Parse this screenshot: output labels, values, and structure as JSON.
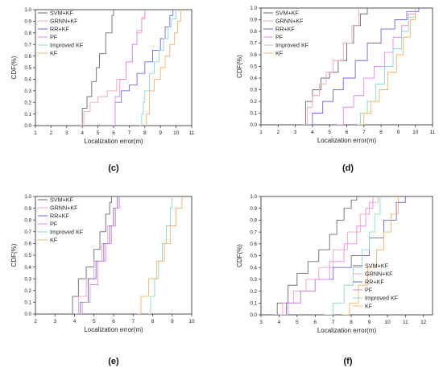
{
  "figure": {
    "series_colors": {
      "SVM+KF": "#6b6b6b",
      "GRNN+KF": "#f2a3b8",
      "RR+KF": "#6a6ad8",
      "PF": "#e38be8",
      "Improved KF": "#8fd3cf",
      "KF": "#f5b06a"
    }
  },
  "chart_data": [
    {
      "panel": "(c)",
      "type": "line",
      "xlabel": "Localization error(m)",
      "ylabel": "CDF(%)",
      "xlim": [
        1,
        11
      ],
      "ylim": [
        0,
        1
      ],
      "xticks": [
        "1",
        "2",
        "3",
        "4",
        "5",
        "6",
        "7",
        "8",
        "9",
        "10",
        "11"
      ],
      "yticks": [
        "0.0",
        "0.1",
        "0.2",
        "0.3",
        "0.4",
        "0.5",
        "0.6",
        "0.7",
        "0.8",
        "0.9",
        "1.0"
      ],
      "legend": "top-left",
      "series": [
        {
          "name": "SVM+KF",
          "x": [
            3.9,
            4.0,
            4.3,
            4.6,
            4.9,
            5.1,
            5.5,
            5.9,
            6.0
          ],
          "y": [
            0.0,
            0.15,
            0.25,
            0.38,
            0.5,
            0.62,
            0.8,
            0.95,
            1.0
          ]
        },
        {
          "name": "GRNN+KF",
          "x": [
            3.9,
            4.1,
            4.5,
            5.0,
            5.6,
            6.2,
            6.8,
            7.2,
            7.5,
            7.8,
            8.0
          ],
          "y": [
            0.0,
            0.12,
            0.2,
            0.25,
            0.3,
            0.4,
            0.55,
            0.7,
            0.8,
            0.92,
            1.0
          ]
        },
        {
          "name": "RR+KF",
          "x": [
            5.9,
            6.1,
            6.5,
            7.0,
            7.5,
            8.0,
            8.5,
            9.0,
            9.3,
            9.6,
            9.8
          ],
          "y": [
            0.0,
            0.2,
            0.3,
            0.35,
            0.45,
            0.55,
            0.65,
            0.75,
            0.85,
            0.95,
            1.0
          ]
        },
        {
          "name": "PF",
          "x": [
            6.0,
            6.1,
            6.4,
            6.8,
            7.2,
            7.5,
            7.8,
            8.0
          ],
          "y": [
            0.0,
            0.25,
            0.4,
            0.55,
            0.7,
            0.82,
            0.93,
            1.0
          ]
        },
        {
          "name": "Improved KF",
          "x": [
            7.7,
            7.8,
            7.9,
            8.0,
            8.3,
            8.6,
            8.9,
            9.2,
            9.5,
            9.7,
            10.0
          ],
          "y": [
            0.0,
            0.1,
            0.2,
            0.3,
            0.45,
            0.55,
            0.65,
            0.75,
            0.85,
            0.92,
            1.0
          ]
        },
        {
          "name": "KF",
          "x": [
            8.0,
            8.1,
            8.3,
            8.6,
            9.0,
            9.3,
            9.6,
            9.9,
            10.1,
            10.3
          ],
          "y": [
            0.0,
            0.1,
            0.3,
            0.4,
            0.5,
            0.6,
            0.7,
            0.8,
            0.9,
            1.0
          ]
        }
      ]
    },
    {
      "panel": "(d)",
      "type": "line",
      "xlabel": "Localization error(m)",
      "ylabel": "CDF(%)",
      "xlim": [
        1,
        11
      ],
      "ylim": [
        0,
        1
      ],
      "xticks": [
        "1",
        "2",
        "3",
        "4",
        "5",
        "6",
        "7",
        "8",
        "9",
        "10",
        "11"
      ],
      "yticks": [
        "0.0",
        "0.1",
        "0.2",
        "0.3",
        "0.4",
        "0.5",
        "0.6",
        "0.7",
        "0.8",
        "0.9",
        "1.0"
      ],
      "legend": "top-left",
      "series": [
        {
          "name": "SVM+KF",
          "x": [
            3.3,
            3.6,
            4.0,
            4.5,
            5.0,
            5.5,
            6.0,
            6.4,
            6.8,
            7.2
          ],
          "y": [
            0.0,
            0.2,
            0.3,
            0.4,
            0.45,
            0.55,
            0.7,
            0.85,
            0.95,
            1.0
          ]
        },
        {
          "name": "GRNN+KF",
          "x": [
            3.5,
            3.7,
            4.0,
            4.4,
            4.8,
            5.2,
            5.8,
            6.3,
            6.7
          ],
          "y": [
            0.0,
            0.15,
            0.25,
            0.35,
            0.45,
            0.55,
            0.7,
            0.85,
            1.0
          ]
        },
        {
          "name": "RR+KF",
          "x": [
            3.6,
            4.0,
            4.6,
            5.2,
            5.8,
            6.5,
            7.2,
            8.0,
            8.8,
            9.5,
            10.2
          ],
          "y": [
            0.0,
            0.1,
            0.2,
            0.3,
            0.4,
            0.55,
            0.7,
            0.82,
            0.9,
            0.97,
            1.0
          ]
        },
        {
          "name": "PF",
          "x": [
            5.4,
            5.8,
            6.4,
            7.0,
            7.6,
            8.2,
            8.7,
            9.2,
            9.6,
            10.0
          ],
          "y": [
            0.0,
            0.15,
            0.25,
            0.4,
            0.5,
            0.62,
            0.75,
            0.85,
            0.95,
            1.0
          ]
        },
        {
          "name": "Improved KF",
          "x": [
            6.6,
            6.8,
            7.2,
            7.7,
            8.2,
            8.7,
            9.2,
            9.6,
            10.0
          ],
          "y": [
            0.0,
            0.1,
            0.2,
            0.35,
            0.5,
            0.65,
            0.8,
            0.92,
            1.0
          ]
        },
        {
          "name": "KF",
          "x": [
            6.8,
            7.0,
            7.4,
            7.9,
            8.4,
            8.9,
            9.3,
            9.7,
            10.0
          ],
          "y": [
            0.0,
            0.1,
            0.2,
            0.3,
            0.45,
            0.6,
            0.75,
            0.9,
            1.0
          ]
        }
      ]
    },
    {
      "panel": "(e)",
      "type": "line",
      "xlabel": "Localization error(m)",
      "ylabel": "CDF(%)",
      "xlim": [
        2,
        10
      ],
      "ylim": [
        0,
        1
      ],
      "xticks": [
        "2",
        "3",
        "4",
        "5",
        "6",
        "7",
        "8",
        "9",
        "10"
      ],
      "yticks": [
        "0.0",
        "0.1",
        "0.2",
        "0.3",
        "0.4",
        "0.5",
        "0.6",
        "0.7",
        "0.8",
        "0.9",
        "1.0"
      ],
      "legend": "top-left",
      "series": [
        {
          "name": "SVM+KF",
          "x": [
            3.8,
            3.9,
            4.2,
            4.6,
            5.0,
            5.3,
            5.6,
            5.8,
            5.9
          ],
          "y": [
            0.0,
            0.15,
            0.3,
            0.4,
            0.55,
            0.7,
            0.85,
            0.95,
            1.0
          ]
        },
        {
          "name": "GRNN+KF",
          "x": [
            4.0,
            4.2,
            4.6,
            5.0,
            5.4,
            5.7,
            6.0,
            6.2
          ],
          "y": [
            0.0,
            0.15,
            0.3,
            0.45,
            0.6,
            0.75,
            0.9,
            1.0
          ]
        },
        {
          "name": "RR+KF",
          "x": [
            4.1,
            4.3,
            4.7,
            5.1,
            5.5,
            5.8,
            6.0,
            6.2
          ],
          "y": [
            0.0,
            0.1,
            0.3,
            0.45,
            0.6,
            0.75,
            0.9,
            1.0
          ]
        },
        {
          "name": "PF",
          "x": [
            4.2,
            4.4,
            4.8,
            5.2,
            5.6,
            5.9,
            6.1,
            6.3
          ],
          "y": [
            0.0,
            0.1,
            0.25,
            0.45,
            0.6,
            0.75,
            0.9,
            1.0
          ]
        },
        {
          "name": "Improved KF",
          "x": [
            7.8,
            7.9,
            8.1,
            8.3,
            8.5,
            8.7,
            8.9,
            9.0
          ],
          "y": [
            0.0,
            0.15,
            0.3,
            0.45,
            0.6,
            0.75,
            0.9,
            1.0
          ]
        },
        {
          "name": "KF",
          "x": [
            7.2,
            7.4,
            7.8,
            8.2,
            8.6,
            8.9,
            9.2,
            9.5
          ],
          "y": [
            0.0,
            0.15,
            0.3,
            0.45,
            0.6,
            0.75,
            0.9,
            1.0
          ]
        }
      ]
    },
    {
      "panel": "(f)",
      "type": "line",
      "xlabel": "Localization error(m)",
      "ylabel": "CDF(%)",
      "xlim": [
        3,
        12.5
      ],
      "ylim": [
        0,
        1
      ],
      "xticks": [
        "3",
        "4",
        "5",
        "6",
        "7",
        "8",
        "9",
        "10",
        "11",
        "12"
      ],
      "yticks": [
        "0.0",
        "0.1",
        "0.2",
        "0.3",
        "0.4",
        "0.5",
        "0.6",
        "0.7",
        "0.8",
        "0.9",
        "1.0"
      ],
      "legend": "bottom-right",
      "series": [
        {
          "name": "SVM+KF",
          "x": [
            3.6,
            3.9,
            4.5,
            5.0,
            5.6,
            6.2,
            6.8,
            7.2,
            7.6,
            8.0,
            8.3
          ],
          "y": [
            0.0,
            0.1,
            0.25,
            0.35,
            0.45,
            0.55,
            0.68,
            0.8,
            0.9,
            0.97,
            1.0
          ]
        },
        {
          "name": "GRNN+KF",
          "x": [
            3.8,
            4.2,
            4.8,
            5.5,
            6.2,
            7.0,
            7.8,
            8.5,
            9.0,
            9.5
          ],
          "y": [
            0.0,
            0.1,
            0.2,
            0.3,
            0.4,
            0.55,
            0.7,
            0.85,
            0.95,
            1.0
          ]
        },
        {
          "name": "RR+KF",
          "x": [
            3.9,
            4.4,
            5.2,
            6.0,
            7.0,
            8.0,
            9.0,
            9.8,
            10.5,
            11.0
          ],
          "y": [
            0.0,
            0.1,
            0.2,
            0.3,
            0.4,
            0.5,
            0.65,
            0.8,
            0.95,
            1.0
          ]
        },
        {
          "name": "PF",
          "x": [
            4.0,
            4.5,
            5.2,
            6.0,
            6.8,
            7.6,
            8.3,
            8.8,
            9.2
          ],
          "y": [
            0.0,
            0.1,
            0.2,
            0.3,
            0.45,
            0.6,
            0.75,
            0.9,
            1.0
          ]
        },
        {
          "name": "Improved KF",
          "x": [
            6.5,
            7.0,
            7.6,
            8.1,
            8.6,
            9.0,
            9.3,
            9.6
          ],
          "y": [
            0.0,
            0.1,
            0.25,
            0.4,
            0.55,
            0.7,
            0.85,
            1.0
          ]
        },
        {
          "name": "KF",
          "x": [
            7.5,
            7.9,
            8.4,
            8.9,
            9.4,
            9.8,
            10.2,
            10.6
          ],
          "y": [
            0.0,
            0.1,
            0.25,
            0.4,
            0.55,
            0.7,
            0.85,
            1.0
          ]
        }
      ]
    }
  ]
}
